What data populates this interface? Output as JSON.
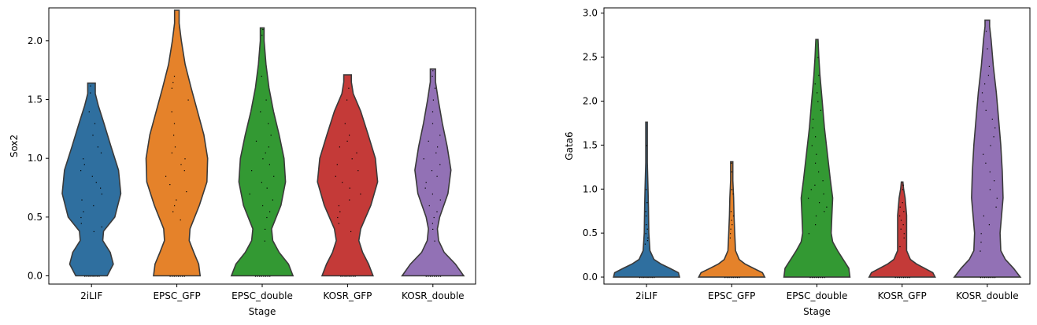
{
  "chart_data": [
    {
      "type": "violin",
      "xlabel": "Stage",
      "ylabel": "Sox2",
      "categories": [
        "2iLIF",
        "EPSC_GFP",
        "EPSC_double",
        "KOSR_GFP",
        "KOSR_double"
      ],
      "colors": [
        "#2f6f9f",
        "#e5822a",
        "#339933",
        "#c43a38",
        "#9271b5"
      ],
      "ylim": [
        -0.07,
        2.28
      ],
      "yticks": [
        0.0,
        0.5,
        1.0,
        1.5,
        2.0
      ],
      "ytick_labels": [
        "0.0",
        "0.5",
        "1.0",
        "1.5",
        "2.0"
      ],
      "series": [
        {
          "category": "2iLIF",
          "max": 1.64,
          "density": [
            [
              0.0,
              0.42
            ],
            [
              0.1,
              0.58
            ],
            [
              0.2,
              0.5
            ],
            [
              0.3,
              0.3
            ],
            [
              0.38,
              0.32
            ],
            [
              0.5,
              0.62
            ],
            [
              0.7,
              0.78
            ],
            [
              0.9,
              0.72
            ],
            [
              1.1,
              0.52
            ],
            [
              1.3,
              0.33
            ],
            [
              1.45,
              0.18
            ],
            [
              1.55,
              0.1
            ],
            [
              1.64,
              0.1
            ]
          ],
          "points": [
            0.38,
            0.42,
            0.45,
            0.5,
            0.55,
            0.6,
            0.65,
            0.7,
            0.75,
            0.8,
            0.85,
            0.9,
            0.95,
            1.0,
            1.05,
            1.1,
            1.2,
            1.3,
            1.4,
            1.56,
            1.62
          ]
        },
        {
          "category": "EPSC_GFP",
          "max": 2.26,
          "density": [
            [
              0.0,
              0.62
            ],
            [
              0.1,
              0.58
            ],
            [
              0.2,
              0.45
            ],
            [
              0.3,
              0.33
            ],
            [
              0.4,
              0.35
            ],
            [
              0.6,
              0.6
            ],
            [
              0.8,
              0.8
            ],
            [
              1.0,
              0.82
            ],
            [
              1.2,
              0.72
            ],
            [
              1.4,
              0.55
            ],
            [
              1.6,
              0.38
            ],
            [
              1.8,
              0.22
            ],
            [
              2.0,
              0.12
            ],
            [
              2.15,
              0.06
            ],
            [
              2.26,
              0.06
            ]
          ],
          "points": [
            0.48,
            0.55,
            0.6,
            0.65,
            0.72,
            0.78,
            0.85,
            0.9,
            0.95,
            1.0,
            1.05,
            1.1,
            1.2,
            1.3,
            1.4,
            1.5,
            1.6,
            1.65,
            1.7
          ]
        },
        {
          "category": "EPSC_double",
          "max": 2.11,
          "density": [
            [
              0.0,
              0.82
            ],
            [
              0.1,
              0.7
            ],
            [
              0.2,
              0.45
            ],
            [
              0.3,
              0.28
            ],
            [
              0.4,
              0.25
            ],
            [
              0.6,
              0.5
            ],
            [
              0.8,
              0.62
            ],
            [
              1.0,
              0.58
            ],
            [
              1.2,
              0.45
            ],
            [
              1.4,
              0.3
            ],
            [
              1.6,
              0.18
            ],
            [
              1.8,
              0.1
            ],
            [
              2.0,
              0.05
            ],
            [
              2.11,
              0.05
            ]
          ],
          "points": [
            0.3,
            0.4,
            0.5,
            0.55,
            0.6,
            0.65,
            0.7,
            0.75,
            0.8,
            0.85,
            0.9,
            0.95,
            1.0,
            1.05,
            1.1,
            1.15,
            1.2,
            1.3,
            1.4,
            1.5,
            1.7,
            2.05,
            2.1
          ]
        },
        {
          "category": "KOSR_GFP",
          "max": 1.71,
          "density": [
            [
              0.0,
              0.68
            ],
            [
              0.1,
              0.56
            ],
            [
              0.2,
              0.4
            ],
            [
              0.3,
              0.3
            ],
            [
              0.4,
              0.35
            ],
            [
              0.6,
              0.62
            ],
            [
              0.8,
              0.8
            ],
            [
              1.0,
              0.74
            ],
            [
              1.2,
              0.55
            ],
            [
              1.4,
              0.35
            ],
            [
              1.55,
              0.15
            ],
            [
              1.65,
              0.1
            ],
            [
              1.71,
              0.1
            ]
          ],
          "points": [
            0.38,
            0.45,
            0.5,
            0.55,
            0.6,
            0.65,
            0.7,
            0.75,
            0.8,
            0.85,
            0.9,
            0.95,
            1.0,
            1.05,
            1.1,
            1.15,
            1.2,
            1.3,
            1.5,
            1.6
          ]
        },
        {
          "category": "KOSR_double",
          "max": 1.76,
          "density": [
            [
              0.0,
              0.82
            ],
            [
              0.1,
              0.6
            ],
            [
              0.2,
              0.3
            ],
            [
              0.3,
              0.15
            ],
            [
              0.4,
              0.12
            ],
            [
              0.5,
              0.18
            ],
            [
              0.7,
              0.4
            ],
            [
              0.9,
              0.48
            ],
            [
              1.1,
              0.38
            ],
            [
              1.3,
              0.25
            ],
            [
              1.5,
              0.14
            ],
            [
              1.65,
              0.07
            ],
            [
              1.76,
              0.07
            ]
          ],
          "points": [
            0.3,
            0.4,
            0.45,
            0.5,
            0.55,
            0.6,
            0.65,
            0.7,
            0.75,
            0.8,
            0.85,
            0.9,
            0.95,
            1.0,
            1.05,
            1.1,
            1.15,
            1.2,
            1.3,
            1.4,
            1.5,
            1.6,
            1.7,
            1.75
          ]
        }
      ]
    },
    {
      "type": "violin",
      "xlabel": "Stage",
      "ylabel": "Gata6",
      "categories": [
        "2iLIF",
        "EPSC_GFP",
        "EPSC_double",
        "KOSR_GFP",
        "KOSR_double"
      ],
      "colors": [
        "#2f6f9f",
        "#e5822a",
        "#339933",
        "#c43a38",
        "#9271b5"
      ],
      "ylim": [
        -0.08,
        3.06
      ],
      "yticks": [
        0.0,
        0.5,
        1.0,
        1.5,
        2.0,
        2.5,
        3.0
      ],
      "ytick_labels": [
        "0.0",
        "0.5",
        "1.0",
        "1.5",
        "2.0",
        "2.5",
        "3.0"
      ],
      "series": [
        {
          "category": "2iLIF",
          "max": 1.76,
          "density": [
            [
              0.0,
              0.88
            ],
            [
              0.05,
              0.85
            ],
            [
              0.1,
              0.62
            ],
            [
              0.15,
              0.38
            ],
            [
              0.2,
              0.2
            ],
            [
              0.3,
              0.09
            ],
            [
              0.5,
              0.06
            ],
            [
              0.8,
              0.05
            ],
            [
              1.0,
              0.04
            ],
            [
              1.3,
              0.02
            ],
            [
              1.6,
              0.02
            ],
            [
              1.76,
              0.02
            ]
          ],
          "points": [
            0.38,
            0.42,
            0.45,
            0.5,
            0.55,
            0.6,
            0.7,
            0.75,
            0.85,
            1.0,
            1.5
          ]
        },
        {
          "category": "EPSC_GFP",
          "max": 1.31,
          "density": [
            [
              0.0,
              0.88
            ],
            [
              0.05,
              0.82
            ],
            [
              0.1,
              0.58
            ],
            [
              0.15,
              0.35
            ],
            [
              0.2,
              0.2
            ],
            [
              0.3,
              0.1
            ],
            [
              0.5,
              0.08
            ],
            [
              0.7,
              0.06
            ],
            [
              0.9,
              0.05
            ],
            [
              1.1,
              0.03
            ],
            [
              1.31,
              0.03
            ]
          ],
          "points": [
            0.45,
            0.5,
            0.55,
            0.6,
            0.65,
            0.7,
            0.75,
            0.95,
            1.0,
            1.2,
            1.3
          ]
        },
        {
          "category": "EPSC_double",
          "max": 2.7,
          "density": [
            [
              0.0,
              0.88
            ],
            [
              0.1,
              0.85
            ],
            [
              0.2,
              0.7
            ],
            [
              0.3,
              0.55
            ],
            [
              0.4,
              0.42
            ],
            [
              0.5,
              0.38
            ],
            [
              0.7,
              0.4
            ],
            [
              0.9,
              0.42
            ],
            [
              1.1,
              0.36
            ],
            [
              1.4,
              0.28
            ],
            [
              1.7,
              0.2
            ],
            [
              2.0,
              0.14
            ],
            [
              2.3,
              0.08
            ],
            [
              2.5,
              0.05
            ],
            [
              2.7,
              0.03
            ]
          ],
          "points": [
            0.5,
            0.6,
            0.7,
            0.75,
            0.8,
            0.85,
            0.9,
            0.95,
            1.0,
            1.05,
            1.1,
            1.2,
            1.3,
            1.4,
            1.5,
            1.6,
            1.7,
            1.8,
            1.9,
            2.0,
            2.1,
            2.2,
            2.3,
            2.5
          ]
        },
        {
          "category": "KOSR_GFP",
          "max": 1.08,
          "density": [
            [
              0.0,
              0.88
            ],
            [
              0.05,
              0.82
            ],
            [
              0.1,
              0.6
            ],
            [
              0.15,
              0.38
            ],
            [
              0.2,
              0.22
            ],
            [
              0.3,
              0.12
            ],
            [
              0.5,
              0.12
            ],
            [
              0.7,
              0.12
            ],
            [
              0.9,
              0.08
            ],
            [
              1.0,
              0.04
            ],
            [
              1.08,
              0.02
            ]
          ],
          "points": [
            0.35,
            0.45,
            0.5,
            0.55,
            0.6,
            0.65,
            0.7,
            0.75,
            0.8,
            0.85,
            1.0,
            1.05
          ]
        },
        {
          "category": "KOSR_double",
          "max": 2.92,
          "density": [
            [
              0.0,
              0.88
            ],
            [
              0.1,
              0.7
            ],
            [
              0.2,
              0.48
            ],
            [
              0.3,
              0.36
            ],
            [
              0.5,
              0.34
            ],
            [
              0.7,
              0.38
            ],
            [
              0.9,
              0.42
            ],
            [
              1.2,
              0.4
            ],
            [
              1.5,
              0.36
            ],
            [
              1.8,
              0.3
            ],
            [
              2.1,
              0.24
            ],
            [
              2.4,
              0.16
            ],
            [
              2.7,
              0.1
            ],
            [
              2.85,
              0.06
            ],
            [
              2.92,
              0.06
            ]
          ],
          "points": [
            0.3,
            0.4,
            0.5,
            0.6,
            0.7,
            0.8,
            0.9,
            1.0,
            1.1,
            1.2,
            1.3,
            1.4,
            1.5,
            1.6,
            1.7,
            1.8,
            1.9,
            2.0,
            2.1,
            2.2,
            2.3,
            2.4,
            2.6,
            2.8
          ]
        }
      ]
    }
  ]
}
